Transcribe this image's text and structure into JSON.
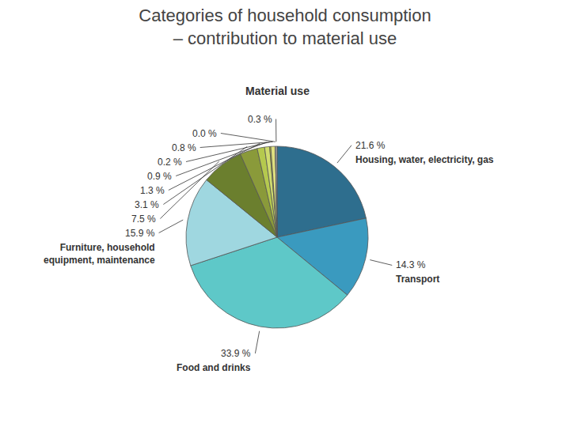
{
  "chart_data": {
    "type": "pie",
    "title": "Categories of household consumption\n– contribution to material use",
    "annotations": [
      "Material use"
    ],
    "categories": [
      "Housing, water, electricity, gas",
      "Transport",
      "Food and drinks",
      "Furniture, household\nequipment, maintenance",
      null,
      null,
      null,
      null,
      null,
      null,
      null,
      null
    ],
    "values": [
      21.6,
      14.3,
      33.9,
      15.9,
      7.5,
      3.1,
      1.3,
      0.9,
      0.2,
      0.8,
      0.0,
      0.3
    ],
    "value_labels": [
      "21.6 %",
      "14.3 %",
      "33.9 %",
      "15.9 %",
      "7.5 %",
      "3.1 %",
      "1.3 %",
      "0.9 %",
      "0.2 %",
      "0.8 %",
      "0.0 %",
      "0.3 %"
    ],
    "colors": [
      "#2e6e8e",
      "#3a9abf",
      "#5ec8c8",
      "#9fd7e0",
      "#6b7f2e",
      "#8a9a3a",
      "#b5c94e",
      "#d0dc6e",
      "#c8c820",
      "#e0e080",
      "#8b1a1a",
      "#b0b0b0"
    ],
    "data_labels": true
  }
}
